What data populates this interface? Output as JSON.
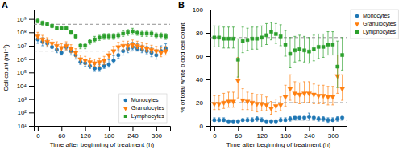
{
  "chart_data": [
    {
      "type": "scatter",
      "title": "A",
      "xlabel": "Time after beginning of treatment (h)",
      "ylabel": "Cell count (ml⁻¹)",
      "log": "y",
      "xlim": [
        -10,
        335
      ],
      "xticks": [
        0,
        60,
        120,
        180,
        240,
        300
      ],
      "ylim": [
        10,
        5000000000
      ],
      "yticks": [
        {
          "value": 10,
          "label": "10¹"
        },
        {
          "value": 100,
          "label": "10²"
        },
        {
          "value": 1000,
          "label": "10³"
        },
        {
          "value": 10000,
          "label": "10⁴"
        },
        {
          "value": 100000,
          "label": "10⁵"
        },
        {
          "value": 1000000,
          "label": "10⁶"
        },
        {
          "value": 10000000,
          "label": "10⁷"
        },
        {
          "value": 100000000,
          "label": "10⁸"
        },
        {
          "value": 1000000000,
          "label": "10⁹"
        }
      ],
      "grid": false,
      "legend": "lower right",
      "hlines": [
        400000000.0,
        4000000.0
      ],
      "x": [
        0,
        12,
        24,
        36,
        48,
        60,
        72,
        84,
        96,
        108,
        120,
        132,
        144,
        156,
        168,
        180,
        192,
        204,
        216,
        228,
        240,
        252,
        264,
        276,
        288,
        300,
        312,
        324
      ],
      "series": [
        {
          "name": "Monocytes",
          "marker": "circle",
          "values": [
            30000000.0,
            20000000.0,
            15000000.0,
            8000000.0,
            5000000.0,
            3000000.0,
            8000000.0,
            4000000.0,
            2000000.0,
            600000.0,
            500000.0,
            300000.0,
            200000.0,
            200000.0,
            300000.0,
            400000.0,
            800000.0,
            2000000.0,
            4000000.0,
            6000000.0,
            8000000.0,
            6000000.0,
            5000000.0,
            4000000.0,
            3000000.0,
            2000000.0,
            4000000.0,
            6000000.0
          ],
          "error_lo": [
            15000000.0,
            10000000.0,
            7000000.0,
            4000000.0,
            2000000.0,
            1000000.0,
            3000000.0,
            2000000.0,
            1000000.0,
            200000.0,
            200000.0,
            100000.0,
            80000.0,
            80000.0,
            100000.0,
            150000.0,
            300000.0,
            800000.0,
            2000000.0,
            3000000.0,
            3000000.0,
            2000000.0,
            2000000.0,
            1500000.0,
            1500000.0,
            1000000.0,
            1500000.0,
            2000000.0
          ],
          "error_hi": [
            30000000.0,
            20000000.0,
            15000000.0,
            8000000.0,
            5000000.0,
            3000000.0,
            8000000.0,
            4000000.0,
            2000000.0,
            600000.0,
            500000.0,
            300000.0,
            200000.0,
            200000.0,
            300000.0,
            500000.0,
            1000000.0,
            3000000.0,
            6000000.0,
            8000000.0,
            10000000.0,
            8000000.0,
            6000000.0,
            5000000.0,
            4000000.0,
            3000000.0,
            6000000.0,
            8000000.0
          ]
        },
        {
          "name": "Granulocytes",
          "marker": "triangle-down",
          "values": [
            50000000.0,
            30000000.0,
            20000000.0,
            15000000.0,
            10000000.0,
            7000000.0,
            10000000.0,
            6000000.0,
            3000000.0,
            1000000.0,
            800000.0,
            600000.0,
            500000.0,
            600000.0,
            800000.0,
            2000000.0,
            4000000.0,
            8000000.0,
            10000000.0,
            10000000.0,
            12000000.0,
            10000000.0,
            8000000.0,
            6000000.0,
            5000000.0,
            4000000.0,
            3000000.0,
            4000000.0
          ],
          "error_lo": [
            20000000.0,
            15000000.0,
            10000000.0,
            7000000.0,
            5000000.0,
            3000000.0,
            5000000.0,
            3000000.0,
            1500000.0,
            500000.0,
            400000.0,
            300000.0,
            200000.0,
            300000.0,
            400000.0,
            800000.0,
            2000000.0,
            4000000.0,
            5000000.0,
            5000000.0,
            5000000.0,
            4000000.0,
            3000000.0,
            2500000.0,
            2000000.0,
            2000000.0,
            1500000.0,
            2000000.0
          ],
          "error_hi": [
            50000000.0,
            30000000.0,
            20000000.0,
            15000000.0,
            10000000.0,
            7000000.0,
            10000000.0,
            6000000.0,
            3000000.0,
            1000000.0,
            800000.0,
            600000.0,
            500000.0,
            600000.0,
            800000.0,
            2000000.0,
            5000000.0,
            10000000.0,
            12000000.0,
            12000000.0,
            15000000.0,
            12000000.0,
            10000000.0,
            8000000.0,
            6000000.0,
            5000000.0,
            4000000.0,
            5000000.0
          ]
        },
        {
          "name": "Lymphocytes",
          "marker": "square",
          "values": [
            700000000.0,
            500000000.0,
            400000000.0,
            300000000.0,
            200000000.0,
            200000000.0,
            200000000.0,
            100000000.0,
            50000000.0,
            10000000.0,
            10000000.0,
            20000000.0,
            30000000.0,
            40000000.0,
            50000000.0,
            50000000.0,
            50000000.0,
            60000000.0,
            80000000.0,
            100000000.0,
            120000000.0,
            90000000.0,
            80000000.0,
            80000000.0,
            80000000.0,
            60000000.0,
            60000000.0,
            50000000.0
          ],
          "error_lo": [
            200000000.0,
            150000000.0,
            100000000.0,
            80000000.0,
            50000000.0,
            50000000.0,
            50000000.0,
            30000000.0,
            15000000.0,
            4000000.0,
            4000000.0,
            7000000.0,
            10000000.0,
            15000000.0,
            20000000.0,
            20000000.0,
            20000000.0,
            20000000.0,
            30000000.0,
            40000000.0,
            50000000.0,
            30000000.0,
            30000000.0,
            30000000.0,
            30000000.0,
            20000000.0,
            20000000.0,
            20000000.0
          ],
          "error_hi": [
            300000000.0,
            200000000.0,
            150000000.0,
            100000000.0,
            60000000.0,
            60000000.0,
            60000000.0,
            30000000.0,
            15000000.0,
            5000000.0,
            5000000.0,
            10000000.0,
            20000000.0,
            20000000.0,
            30000000.0,
            30000000.0,
            30000000.0,
            30000000.0,
            50000000.0,
            60000000.0,
            80000000.0,
            50000000.0,
            40000000.0,
            40000000.0,
            40000000.0,
            30000000.0,
            30000000.0,
            30000000.0
          ]
        }
      ]
    },
    {
      "type": "scatter",
      "title": "B",
      "xlabel": "Time after beginning of treatment (h)",
      "ylabel": "% of total white blood cell count",
      "xlim": [
        -10,
        335
      ],
      "xticks": [
        0,
        60,
        120,
        180,
        240,
        300
      ],
      "ylim": [
        0,
        100
      ],
      "yticks": [
        0,
        20,
        40,
        60,
        80,
        100
      ],
      "grid": false,
      "legend": "upper right",
      "hlines": [
        76,
        20,
        5
      ],
      "x": [
        0,
        12,
        24,
        36,
        48,
        60,
        72,
        84,
        96,
        108,
        120,
        132,
        144,
        156,
        168,
        180,
        192,
        204,
        216,
        228,
        240,
        252,
        264,
        276,
        288,
        300,
        312,
        324
      ],
      "series": [
        {
          "name": "Monocytes",
          "marker": "circle",
          "values": [
            5,
            5,
            5,
            4,
            4,
            4,
            5,
            5,
            5,
            6,
            5,
            4,
            4,
            4,
            5,
            5,
            6,
            7,
            7,
            7,
            8,
            7,
            6,
            6,
            5,
            5,
            6,
            7
          ],
          "error_lo": [
            1,
            1,
            1,
            1,
            1,
            1,
            1,
            1,
            1,
            2,
            1,
            1,
            1,
            1,
            1,
            1,
            2,
            2,
            2,
            2,
            3,
            2,
            2,
            2,
            2,
            1,
            2,
            2
          ],
          "error_hi": [
            2,
            2,
            2,
            1,
            1,
            1,
            1,
            2,
            2,
            2,
            2,
            1,
            1,
            1,
            2,
            2,
            2,
            2,
            2,
            2,
            3,
            2,
            2,
            2,
            2,
            2,
            2,
            2
          ]
        },
        {
          "name": "Granulocytes",
          "marker": "triangle-down",
          "values": [
            19,
            19,
            20,
            21,
            21,
            39,
            22,
            21,
            20,
            19,
            19,
            18,
            15,
            17,
            18,
            25,
            32,
            28,
            27,
            28,
            28,
            27,
            26,
            26,
            25,
            25,
            43,
            32
          ],
          "error_lo": [
            5,
            5,
            5,
            5,
            5,
            15,
            8,
            7,
            7,
            7,
            6,
            5,
            5,
            5,
            5,
            8,
            10,
            8,
            8,
            8,
            8,
            8,
            7,
            7,
            7,
            7,
            15,
            10
          ],
          "error_hi": [
            7,
            7,
            8,
            8,
            8,
            20,
            10,
            8,
            8,
            8,
            8,
            7,
            6,
            6,
            7,
            10,
            12,
            10,
            10,
            10,
            10,
            9,
            9,
            9,
            9,
            9,
            18,
            12
          ]
        },
        {
          "name": "Lymphocytes",
          "marker": "square",
          "values": [
            76,
            76,
            75,
            75,
            75,
            57,
            73,
            74,
            75,
            75,
            76,
            78,
            81,
            79,
            77,
            70,
            62,
            65,
            66,
            65,
            64,
            66,
            68,
            68,
            70,
            70,
            51,
            61
          ],
          "error_lo": [
            8,
            8,
            8,
            8,
            8,
            15,
            10,
            9,
            9,
            9,
            8,
            8,
            7,
            8,
            8,
            10,
            12,
            10,
            10,
            10,
            10,
            10,
            10,
            9,
            9,
            9,
            18,
            13
          ],
          "error_hi": [
            10,
            10,
            10,
            10,
            10,
            18,
            12,
            10,
            10,
            10,
            10,
            10,
            8,
            9,
            10,
            12,
            14,
            12,
            12,
            12,
            12,
            12,
            11,
            11,
            11,
            11,
            22,
            15
          ]
        }
      ]
    }
  ]
}
